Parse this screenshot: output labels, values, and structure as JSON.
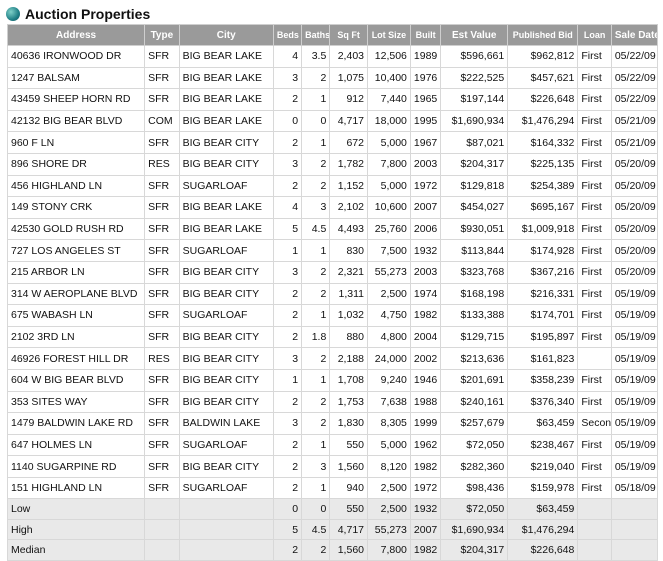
{
  "title": "Auction Properties",
  "headers": [
    "Address",
    "Type",
    "City",
    "Beds",
    "Baths",
    "Sq Ft",
    "Lot Size",
    "Built",
    "Est Value",
    "Published Bid",
    "Loan",
    "Sale Date"
  ],
  "rows": [
    [
      "40636 IRONWOOD DR",
      "SFR",
      "BIG BEAR LAKE",
      "4",
      "3.5",
      "2,403",
      "12,506",
      "1989",
      "$596,661",
      "$962,812",
      "First",
      "05/22/09"
    ],
    [
      "1247 BALSAM",
      "SFR",
      "BIG BEAR LAKE",
      "3",
      "2",
      "1,075",
      "10,400",
      "1976",
      "$222,525",
      "$457,621",
      "First",
      "05/22/09"
    ],
    [
      "43459 SHEEP HORN RD",
      "SFR",
      "BIG BEAR LAKE",
      "2",
      "1",
      "912",
      "7,440",
      "1965",
      "$197,144",
      "$226,648",
      "First",
      "05/22/09"
    ],
    [
      "42132 BIG BEAR BLVD",
      "COM",
      "BIG BEAR LAKE",
      "0",
      "0",
      "4,717",
      "18,000",
      "1995",
      "$1,690,934",
      "$1,476,294",
      "First",
      "05/21/09"
    ],
    [
      "960 F LN",
      "SFR",
      "BIG BEAR CITY",
      "2",
      "1",
      "672",
      "5,000",
      "1967",
      "$87,021",
      "$164,332",
      "First",
      "05/21/09"
    ],
    [
      "896 SHORE DR",
      "RES",
      "BIG BEAR CITY",
      "3",
      "2",
      "1,782",
      "7,800",
      "2003",
      "$204,317",
      "$225,135",
      "First",
      "05/20/09"
    ],
    [
      "456 HIGHLAND LN",
      "SFR",
      "SUGARLOAF",
      "2",
      "2",
      "1,152",
      "5,000",
      "1972",
      "$129,818",
      "$254,389",
      "First",
      "05/20/09"
    ],
    [
      "149 STONY CRK",
      "SFR",
      "BIG BEAR LAKE",
      "4",
      "3",
      "2,102",
      "10,600",
      "2007",
      "$454,027",
      "$695,167",
      "First",
      "05/20/09"
    ],
    [
      "42530 GOLD RUSH RD",
      "SFR",
      "BIG BEAR LAKE",
      "5",
      "4.5",
      "4,493",
      "25,760",
      "2006",
      "$930,051",
      "$1,009,918",
      "First",
      "05/20/09"
    ],
    [
      "727 LOS ANGELES ST",
      "SFR",
      "SUGARLOAF",
      "1",
      "1",
      "830",
      "7,500",
      "1932",
      "$113,844",
      "$174,928",
      "First",
      "05/20/09"
    ],
    [
      "215 ARBOR LN",
      "SFR",
      "BIG BEAR CITY",
      "3",
      "2",
      "2,321",
      "55,273",
      "2003",
      "$323,768",
      "$367,216",
      "First",
      "05/20/09"
    ],
    [
      "314 W AEROPLANE BLVD",
      "SFR",
      "BIG BEAR CITY",
      "2",
      "2",
      "1,311",
      "2,500",
      "1974",
      "$168,198",
      "$216,331",
      "First",
      "05/19/09"
    ],
    [
      "675 WABASH LN",
      "SFR",
      "SUGARLOAF",
      "2",
      "1",
      "1,032",
      "4,750",
      "1982",
      "$133,388",
      "$174,701",
      "First",
      "05/19/09"
    ],
    [
      "2102 3RD LN",
      "SFR",
      "BIG BEAR CITY",
      "2",
      "1.8",
      "880",
      "4,800",
      "2004",
      "$129,715",
      "$195,897",
      "First",
      "05/19/09"
    ],
    [
      "46926 FOREST HILL DR",
      "RES",
      "BIG BEAR CITY",
      "3",
      "2",
      "2,188",
      "24,000",
      "2002",
      "$213,636",
      "$161,823",
      "",
      "05/19/09"
    ],
    [
      "604 W BIG BEAR BLVD",
      "SFR",
      "BIG BEAR CITY",
      "1",
      "1",
      "1,708",
      "9,240",
      "1946",
      "$201,691",
      "$358,239",
      "First",
      "05/19/09"
    ],
    [
      "353 SITES WAY",
      "SFR",
      "BIG BEAR CITY",
      "2",
      "2",
      "1,753",
      "7,638",
      "1988",
      "$240,161",
      "$376,340",
      "First",
      "05/19/09"
    ],
    [
      "1479 BALDWIN LAKE RD",
      "SFR",
      "BALDWIN LAKE",
      "3",
      "2",
      "1,830",
      "8,305",
      "1999",
      "$257,679",
      "$63,459",
      "Second",
      "05/19/09"
    ],
    [
      "647 HOLMES LN",
      "SFR",
      "SUGARLOAF",
      "2",
      "1",
      "550",
      "5,000",
      "1962",
      "$72,050",
      "$238,467",
      "First",
      "05/19/09"
    ],
    [
      "1140 SUGARPINE RD",
      "SFR",
      "BIG BEAR CITY",
      "2",
      "3",
      "1,560",
      "8,120",
      "1982",
      "$282,360",
      "$219,040",
      "First",
      "05/19/09"
    ],
    [
      "151 HIGHLAND LN",
      "SFR",
      "SUGARLOAF",
      "2",
      "1",
      "940",
      "2,500",
      "1972",
      "$98,436",
      "$159,978",
      "First",
      "05/18/09"
    ]
  ],
  "summary": [
    [
      "Low",
      "",
      "",
      "0",
      "0",
      "550",
      "2,500",
      "1932",
      "$72,050",
      "$63,459",
      "",
      ""
    ],
    [
      "High",
      "",
      "",
      "5",
      "4.5",
      "4,717",
      "55,273",
      "2007",
      "$1,690,934",
      "$1,476,294",
      "",
      ""
    ],
    [
      "Median",
      "",
      "",
      "2",
      "2",
      "1,560",
      "7,800",
      "1982",
      "$204,317",
      "$226,648",
      "",
      ""
    ]
  ]
}
